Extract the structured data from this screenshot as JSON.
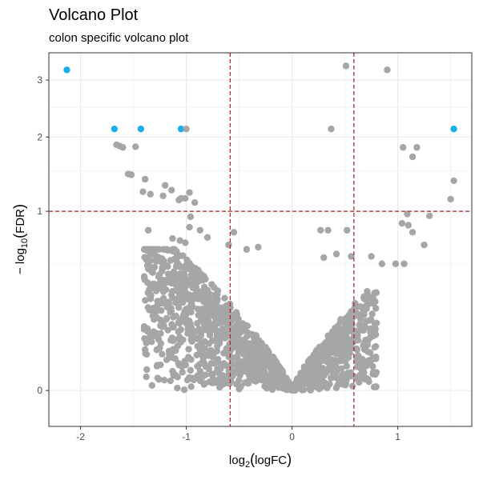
{
  "chart_data": {
    "type": "scatter",
    "title": "Volcano Plot",
    "subtitle": "colon specific volcano plot",
    "xlabel": {
      "base": "log",
      "sub": "2",
      "arg": "logFC"
    },
    "ylabel": {
      "prefix": "− log",
      "sub": "10",
      "arg": "FDR"
    },
    "y_scale": "sqrt",
    "xlim": [
      -2.3,
      1.7
    ],
    "ylim": [
      -0.04,
      3.55
    ],
    "x_ticks": [
      -2,
      -1,
      0,
      1
    ],
    "x_tick_labels": [
      "-2",
      "-1",
      "0",
      "1"
    ],
    "y_ticks": [
      0,
      1,
      2,
      3
    ],
    "y_tick_labels": [
      "0",
      "1",
      "2",
      "3"
    ],
    "grid": true,
    "thresholds": {
      "vertical": [
        -0.585,
        0.585
      ],
      "horizontal": 1.0
    },
    "colors": {
      "significant": "#1AAFEA",
      "nonsignificant": "#A6A6A6",
      "threshold": "#B22222",
      "panel_border": "#333333",
      "grid": "#EBEBEB"
    },
    "series": [
      {
        "color_key": "significant",
        "x": [
          -2.13,
          -1.68,
          -1.43,
          -1.05,
          1.53
        ],
        "y": [
          3.2,
          2.13,
          2.13,
          2.13,
          2.13
        ]
      },
      {
        "color_key": "nonsignificant",
        "x": [
          0.51,
          0.9,
          -1.0,
          0.37,
          -1.66,
          -1.63,
          -1.48,
          -1.6,
          1.05,
          1.18,
          1.14,
          -1.55,
          -1.52,
          -1.39,
          1.53,
          -1.2,
          -1.14,
          -1.41,
          -0.97,
          -1.34,
          -1.22,
          -1.05,
          -1.01,
          1.5,
          -1.07,
          -0.92,
          1.09,
          1.3,
          -0.96,
          1.04,
          1.1,
          -1.36,
          -0.97,
          -0.87,
          0.27,
          0.34,
          0.52,
          1.14,
          -0.55,
          -0.8,
          -1.13,
          -1.06,
          -1.01,
          1.25,
          -0.6,
          -0.32,
          -0.43,
          0.42,
          0.3,
          0.56,
          0.75,
          0.85,
          0.98,
          1.06
        ],
        "y": [
          3.28,
          3.2,
          2.13,
          2.13,
          1.88,
          1.86,
          1.85,
          1.84,
          1.84,
          1.84,
          1.7,
          1.46,
          1.45,
          1.39,
          1.37,
          1.31,
          1.25,
          1.23,
          1.22,
          1.2,
          1.18,
          1.15,
          1.15,
          1.14,
          1.13,
          1.1,
          0.97,
          0.95,
          0.94,
          0.87,
          0.85,
          0.8,
          0.83,
          0.8,
          0.8,
          0.8,
          0.8,
          0.78,
          0.78,
          0.73,
          0.72,
          0.7,
          0.68,
          0.66,
          0.66,
          0.64,
          0.62,
          0.58,
          0.55,
          0.56,
          0.56,
          0.5,
          0.5,
          0.5
        ]
      }
    ]
  }
}
